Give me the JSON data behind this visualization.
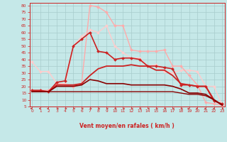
{
  "xlabel": "Vent moyen/en rafales ( km/h )",
  "bg_color": "#c5e8e8",
  "grid_color": "#a8cccc",
  "xlim": [
    -0.3,
    23.3
  ],
  "ylim": [
    5,
    82
  ],
  "yticks": [
    5,
    10,
    15,
    20,
    25,
    30,
    35,
    40,
    45,
    50,
    55,
    60,
    65,
    70,
    75,
    80
  ],
  "xticks": [
    0,
    1,
    2,
    3,
    4,
    5,
    6,
    7,
    8,
    9,
    10,
    11,
    12,
    13,
    14,
    15,
    16,
    17,
    18,
    19,
    20,
    21,
    22,
    23
  ],
  "series": [
    {
      "x": [
        0,
        1,
        2,
        3,
        4,
        5,
        6,
        7,
        8,
        9,
        10,
        11,
        12,
        13,
        14,
        15,
        16,
        17,
        18,
        19,
        20,
        21,
        22,
        23
      ],
      "y": [
        17,
        17,
        17,
        22,
        21,
        20,
        22,
        80,
        79,
        75,
        65,
        65,
        47,
        46,
        46,
        46,
        47,
        35,
        35,
        28,
        21,
        8,
        7,
        6
      ],
      "color": "#ffaaaa",
      "lw": 1.0,
      "marker": "D",
      "ms": 2.0,
      "zorder": 3
    },
    {
      "x": [
        0,
        1,
        2,
        3,
        4,
        5,
        6,
        7,
        8,
        9,
        10,
        11,
        12,
        13,
        14,
        15,
        16,
        17,
        18,
        19,
        20,
        21,
        22,
        23
      ],
      "y": [
        38,
        31,
        31,
        22,
        22,
        50,
        57,
        62,
        60,
        65,
        50,
        45,
        41,
        41,
        35,
        36,
        31,
        30,
        32,
        32,
        31,
        20,
        20,
        6
      ],
      "color": "#ffcccc",
      "lw": 1.0,
      "marker": "D",
      "ms": 2.0,
      "zorder": 2
    },
    {
      "x": [
        0,
        1,
        2,
        3,
        4,
        5,
        6,
        7,
        8,
        9,
        10,
        11,
        12,
        13,
        14,
        15,
        16,
        17,
        18,
        19,
        20,
        21,
        22,
        23
      ],
      "y": [
        17,
        17,
        16,
        23,
        24,
        50,
        55,
        60,
        46,
        45,
        40,
        41,
        41,
        40,
        35,
        35,
        34,
        33,
        21,
        21,
        20,
        20,
        9,
        7
      ],
      "color": "#cc2222",
      "lw": 1.2,
      "marker": "D",
      "ms": 2.0,
      "zorder": 4
    },
    {
      "x": [
        0,
        1,
        2,
        3,
        4,
        5,
        6,
        7,
        8,
        9,
        10,
        11,
        12,
        13,
        14,
        15,
        16,
        17,
        18,
        19,
        20,
        21,
        22,
        23
      ],
      "y": [
        16,
        16,
        16,
        21,
        21,
        21,
        22,
        28,
        33,
        35,
        35,
        35,
        36,
        35,
        35,
        32,
        32,
        28,
        22,
        21,
        20,
        20,
        10,
        6
      ],
      "color": "#cc2222",
      "lw": 1.3,
      "marker": null,
      "ms": 0,
      "zorder": 4
    },
    {
      "x": [
        0,
        1,
        2,
        3,
        4,
        5,
        6,
        7,
        8,
        9,
        10,
        11,
        12,
        13,
        14,
        15,
        16,
        17,
        18,
        19,
        20,
        21,
        22,
        23
      ],
      "y": [
        16,
        16,
        16,
        20,
        20,
        20,
        21,
        25,
        24,
        22,
        22,
        22,
        21,
        21,
        21,
        21,
        21,
        20,
        18,
        15,
        15,
        14,
        10,
        6
      ],
      "color": "#880000",
      "lw": 1.2,
      "marker": null,
      "ms": 0,
      "zorder": 5
    },
    {
      "x": [
        0,
        1,
        2,
        3,
        4,
        5,
        6,
        7,
        8,
        9,
        10,
        11,
        12,
        13,
        14,
        15,
        16,
        17,
        18,
        19,
        20,
        21,
        22,
        23
      ],
      "y": [
        16,
        16,
        16,
        16,
        16,
        16,
        16,
        16,
        16,
        16,
        16,
        16,
        16,
        16,
        16,
        16,
        16,
        16,
        15,
        14,
        14,
        13,
        10,
        6
      ],
      "color": "#880000",
      "lw": 1.0,
      "marker": null,
      "ms": 0,
      "zorder": 5
    }
  ],
  "arrow_angles": [
    200,
    220,
    210,
    190,
    180,
    175,
    170,
    170,
    175,
    175,
    175,
    175,
    175,
    175,
    175,
    175,
    175,
    180,
    185,
    200,
    210,
    225,
    240,
    250
  ]
}
